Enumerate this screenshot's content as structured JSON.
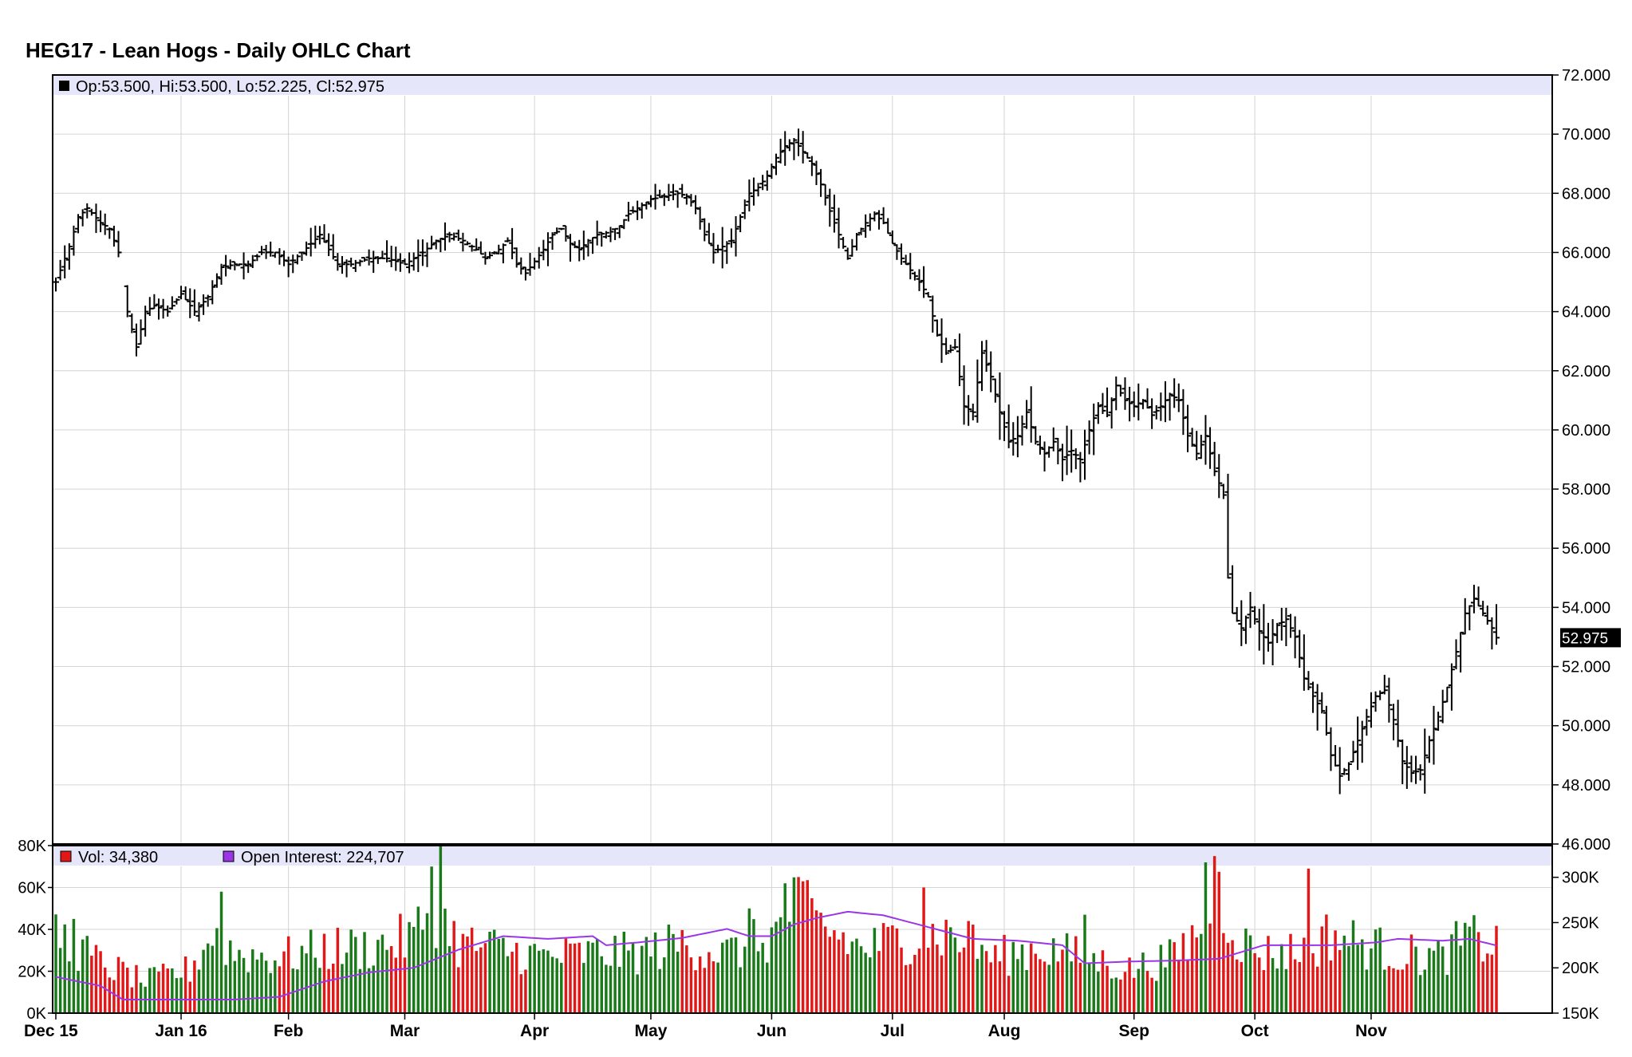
{
  "chart_data": {
    "type": "ohlc",
    "title": "HEG17 - Lean Hogs - Daily OHLC Chart",
    "price_legend": "Op:53.500, Hi:53.500, Lo:52.225, Cl:52.975",
    "last_price_label": "52.975",
    "last_price": 52.975,
    "price_axis": {
      "ylim": [
        46,
        72
      ],
      "ticks": [
        72,
        70,
        68,
        66,
        64,
        62,
        60,
        58,
        56,
        54,
        52,
        50,
        48,
        46
      ],
      "tick_labels": [
        "72.000",
        "70.000",
        "68.000",
        "66.000",
        "64.000",
        "62.000",
        "60.000",
        "58.000",
        "56.000",
        "54.000",
        "52.000",
        "50.000",
        "48.000",
        "46.000"
      ]
    },
    "volume_axis": {
      "ylim": [
        0,
        80000
      ],
      "ticks": [
        0,
        20000,
        40000,
        60000,
        80000
      ],
      "tick_labels": [
        "0K",
        "20K",
        "40K",
        "60K",
        "80K"
      ]
    },
    "open_interest_axis": {
      "ylim": [
        150000,
        335000
      ],
      "ticks": [
        150000,
        200000,
        250000,
        300000
      ],
      "tick_labels": [
        "150K",
        "200K",
        "250K",
        "300K"
      ]
    },
    "x_axis": {
      "months": [
        "Dec 15",
        "Jan 16",
        "Feb",
        "Mar",
        "Apr",
        "May",
        "Jun",
        "Jul",
        "Aug",
        "Sep",
        "Oct",
        "Nov"
      ],
      "month_start_day_index": [
        0,
        28,
        52,
        78,
        107,
        133,
        160,
        187,
        212,
        241,
        268,
        294
      ]
    },
    "volume_legend": "Vol: 34,380",
    "open_interest_legend": "Open Interest: 224,707",
    "price_anchors": [
      {
        "i": 0,
        "p": 65.0
      },
      {
        "i": 3,
        "p": 66.2
      },
      {
        "i": 5,
        "p": 67.2
      },
      {
        "i": 7,
        "p": 67.5
      },
      {
        "i": 10,
        "p": 67.0
      },
      {
        "i": 12,
        "p": 66.8
      },
      {
        "i": 14,
        "p": 66.0
      },
      {
        "i": 16,
        "p": 64.0
      },
      {
        "i": 18,
        "p": 62.8
      },
      {
        "i": 20,
        "p": 64.0
      },
      {
        "i": 22,
        "p": 64.2
      },
      {
        "i": 25,
        "p": 64.0
      },
      {
        "i": 28,
        "p": 64.6
      },
      {
        "i": 31,
        "p": 64.0
      },
      {
        "i": 34,
        "p": 64.5
      },
      {
        "i": 37,
        "p": 65.5
      },
      {
        "i": 40,
        "p": 65.6
      },
      {
        "i": 43,
        "p": 65.6
      },
      {
        "i": 46,
        "p": 66.0
      },
      {
        "i": 49,
        "p": 66.0
      },
      {
        "i": 52,
        "p": 65.6
      },
      {
        "i": 55,
        "p": 66.0
      },
      {
        "i": 57,
        "p": 66.3
      },
      {
        "i": 59,
        "p": 66.6
      },
      {
        "i": 61,
        "p": 66.1
      },
      {
        "i": 63,
        "p": 65.6
      },
      {
        "i": 66,
        "p": 65.6
      },
      {
        "i": 70,
        "p": 65.8
      },
      {
        "i": 74,
        "p": 65.8
      },
      {
        "i": 78,
        "p": 65.6
      },
      {
        "i": 80,
        "p": 65.8
      },
      {
        "i": 82,
        "p": 66.0
      },
      {
        "i": 85,
        "p": 66.4
      },
      {
        "i": 88,
        "p": 66.6
      },
      {
        "i": 91,
        "p": 66.4
      },
      {
        "i": 94,
        "p": 66.1
      },
      {
        "i": 96,
        "p": 65.8
      },
      {
        "i": 99,
        "p": 66.1
      },
      {
        "i": 101,
        "p": 66.4
      },
      {
        "i": 103,
        "p": 65.6
      },
      {
        "i": 105,
        "p": 65.3
      },
      {
        "i": 107,
        "p": 65.7
      },
      {
        "i": 109,
        "p": 66.1
      },
      {
        "i": 111,
        "p": 66.6
      },
      {
        "i": 113,
        "p": 66.8
      },
      {
        "i": 115,
        "p": 66.3
      },
      {
        "i": 117,
        "p": 66.1
      },
      {
        "i": 119,
        "p": 66.4
      },
      {
        "i": 121,
        "p": 66.6
      },
      {
        "i": 124,
        "p": 66.7
      },
      {
        "i": 126,
        "p": 66.9
      },
      {
        "i": 128,
        "p": 67.3
      },
      {
        "i": 131,
        "p": 67.6
      },
      {
        "i": 133,
        "p": 67.8
      },
      {
        "i": 136,
        "p": 67.9
      },
      {
        "i": 139,
        "p": 68.0
      },
      {
        "i": 141,
        "p": 67.9
      },
      {
        "i": 143,
        "p": 67.5
      },
      {
        "i": 145,
        "p": 66.6
      },
      {
        "i": 147,
        "p": 66.0
      },
      {
        "i": 149,
        "p": 66.2
      },
      {
        "i": 151,
        "p": 66.4
      },
      {
        "i": 153,
        "p": 67.2
      },
      {
        "i": 155,
        "p": 68.0
      },
      {
        "i": 157,
        "p": 68.2
      },
      {
        "i": 159,
        "p": 68.6
      },
      {
        "i": 161,
        "p": 69.2
      },
      {
        "i": 163,
        "p": 69.6
      },
      {
        "i": 165,
        "p": 69.8
      },
      {
        "i": 167,
        "p": 69.4
      },
      {
        "i": 169,
        "p": 69.0
      },
      {
        "i": 171,
        "p": 68.3
      },
      {
        "i": 173,
        "p": 67.4
      },
      {
        "i": 175,
        "p": 66.6
      },
      {
        "i": 177,
        "p": 65.8
      },
      {
        "i": 179,
        "p": 66.6
      },
      {
        "i": 181,
        "p": 67.0
      },
      {
        "i": 183,
        "p": 67.3
      },
      {
        "i": 185,
        "p": 67.0
      },
      {
        "i": 187,
        "p": 66.3
      },
      {
        "i": 189,
        "p": 65.8
      },
      {
        "i": 191,
        "p": 65.4
      },
      {
        "i": 193,
        "p": 65.0
      },
      {
        "i": 195,
        "p": 64.5
      },
      {
        "i": 197,
        "p": 63.2
      },
      {
        "i": 199,
        "p": 62.6
      },
      {
        "i": 201,
        "p": 62.8
      },
      {
        "i": 203,
        "p": 60.8
      },
      {
        "i": 205,
        "p": 60.6
      },
      {
        "i": 207,
        "p": 62.6
      },
      {
        "i": 209,
        "p": 61.8
      },
      {
        "i": 211,
        "p": 60.6
      },
      {
        "i": 213,
        "p": 59.6
      },
      {
        "i": 215,
        "p": 59.8
      },
      {
        "i": 217,
        "p": 60.6
      },
      {
        "i": 219,
        "p": 59.6
      },
      {
        "i": 221,
        "p": 59.2
      },
      {
        "i": 223,
        "p": 59.6
      },
      {
        "i": 225,
        "p": 59.0
      },
      {
        "i": 227,
        "p": 59.3
      },
      {
        "i": 229,
        "p": 59.0
      },
      {
        "i": 231,
        "p": 60.0
      },
      {
        "i": 233,
        "p": 60.8
      },
      {
        "i": 235,
        "p": 60.5
      },
      {
        "i": 237,
        "p": 61.5
      },
      {
        "i": 239,
        "p": 61.0
      },
      {
        "i": 241,
        "p": 60.8
      },
      {
        "i": 243,
        "p": 61.0
      },
      {
        "i": 245,
        "p": 60.5
      },
      {
        "i": 247,
        "p": 60.8
      },
      {
        "i": 249,
        "p": 61.2
      },
      {
        "i": 251,
        "p": 61.0
      },
      {
        "i": 253,
        "p": 59.8
      },
      {
        "i": 255,
        "p": 59.2
      },
      {
        "i": 257,
        "p": 59.8
      },
      {
        "i": 259,
        "p": 58.6
      },
      {
        "i": 261,
        "p": 57.8
      },
      {
        "i": 262,
        "p": 55.0
      },
      {
        "i": 263,
        "p": 53.8
      },
      {
        "i": 265,
        "p": 53.3
      },
      {
        "i": 267,
        "p": 54.0
      },
      {
        "i": 269,
        "p": 53.2
      },
      {
        "i": 271,
        "p": 52.8
      },
      {
        "i": 273,
        "p": 53.4
      },
      {
        "i": 275,
        "p": 53.6
      },
      {
        "i": 277,
        "p": 53.0
      },
      {
        "i": 279,
        "p": 51.6
      },
      {
        "i": 281,
        "p": 51.0
      },
      {
        "i": 283,
        "p": 50.5
      },
      {
        "i": 285,
        "p": 49.0
      },
      {
        "i": 287,
        "p": 48.3
      },
      {
        "i": 289,
        "p": 48.7
      },
      {
        "i": 291,
        "p": 49.5
      },
      {
        "i": 293,
        "p": 50.3
      },
      {
        "i": 295,
        "p": 51.0
      },
      {
        "i": 297,
        "p": 51.2
      },
      {
        "i": 299,
        "p": 50.2
      },
      {
        "i": 301,
        "p": 48.8
      },
      {
        "i": 303,
        "p": 48.4
      },
      {
        "i": 305,
        "p": 48.5
      },
      {
        "i": 307,
        "p": 49.5
      },
      {
        "i": 309,
        "p": 50.3
      },
      {
        "i": 311,
        "p": 51.3
      },
      {
        "i": 313,
        "p": 52.5
      },
      {
        "i": 315,
        "p": 53.8
      },
      {
        "i": 317,
        "p": 54.3
      },
      {
        "i": 319,
        "p": 53.8
      },
      {
        "i": 321,
        "p": 53.3
      },
      {
        "i": 322,
        "p": 52.975
      }
    ],
    "volume_anchors": [
      {
        "i": 0,
        "v": 40000
      },
      {
        "i": 10,
        "v": 25000
      },
      {
        "i": 20,
        "v": 16000
      },
      {
        "i": 30,
        "v": 22000
      },
      {
        "i": 35,
        "v": 40000
      },
      {
        "i": 40,
        "v": 30000
      },
      {
        "i": 50,
        "v": 28000
      },
      {
        "i": 60,
        "v": 32000
      },
      {
        "i": 70,
        "v": 33000
      },
      {
        "i": 80,
        "v": 38000
      },
      {
        "i": 84,
        "v": 55000
      },
      {
        "i": 90,
        "v": 35000
      },
      {
        "i": 100,
        "v": 32000
      },
      {
        "i": 110,
        "v": 28000
      },
      {
        "i": 120,
        "v": 30000
      },
      {
        "i": 130,
        "v": 30000
      },
      {
        "i": 140,
        "v": 35000
      },
      {
        "i": 150,
        "v": 30000
      },
      {
        "i": 160,
        "v": 38000
      },
      {
        "i": 165,
        "v": 55000
      },
      {
        "i": 170,
        "v": 45000
      },
      {
        "i": 180,
        "v": 32000
      },
      {
        "i": 190,
        "v": 38000
      },
      {
        "i": 200,
        "v": 40000
      },
      {
        "i": 210,
        "v": 28000
      },
      {
        "i": 220,
        "v": 33000
      },
      {
        "i": 230,
        "v": 28000
      },
      {
        "i": 240,
        "v": 22000
      },
      {
        "i": 250,
        "v": 28000
      },
      {
        "i": 255,
        "v": 40000
      },
      {
        "i": 260,
        "v": 60000
      },
      {
        "i": 265,
        "v": 35000
      },
      {
        "i": 270,
        "v": 30000
      },
      {
        "i": 280,
        "v": 32000
      },
      {
        "i": 285,
        "v": 40000
      },
      {
        "i": 290,
        "v": 36000
      },
      {
        "i": 300,
        "v": 30000
      },
      {
        "i": 310,
        "v": 28000
      },
      {
        "i": 315,
        "v": 38000
      },
      {
        "i": 322,
        "v": 34380
      }
    ],
    "volume_spikes": [
      {
        "i": 4,
        "v": 45000
      },
      {
        "i": 37,
        "v": 58000
      },
      {
        "i": 84,
        "v": 70000
      },
      {
        "i": 86,
        "v": 80000
      },
      {
        "i": 155,
        "v": 50000
      },
      {
        "i": 163,
        "v": 62000
      },
      {
        "i": 166,
        "v": 65000
      },
      {
        "i": 194,
        "v": 60000
      },
      {
        "i": 204,
        "v": 44000
      },
      {
        "i": 230,
        "v": 47000
      },
      {
        "i": 257,
        "v": 72000
      },
      {
        "i": 259,
        "v": 75000
      },
      {
        "i": 280,
        "v": 69000
      }
    ],
    "open_interest_anchors": [
      {
        "i": 0,
        "v": 190000
      },
      {
        "i": 10,
        "v": 180000
      },
      {
        "i": 15,
        "v": 165000
      },
      {
        "i": 25,
        "v": 165000
      },
      {
        "i": 40,
        "v": 165000
      },
      {
        "i": 50,
        "v": 168000
      },
      {
        "i": 60,
        "v": 185000
      },
      {
        "i": 70,
        "v": 195000
      },
      {
        "i": 80,
        "v": 200000
      },
      {
        "i": 90,
        "v": 220000
      },
      {
        "i": 100,
        "v": 235000
      },
      {
        "i": 110,
        "v": 232000
      },
      {
        "i": 120,
        "v": 235000
      },
      {
        "i": 123,
        "v": 225000
      },
      {
        "i": 130,
        "v": 228000
      },
      {
        "i": 140,
        "v": 233000
      },
      {
        "i": 150,
        "v": 243000
      },
      {
        "i": 155,
        "v": 235000
      },
      {
        "i": 160,
        "v": 235000
      },
      {
        "i": 165,
        "v": 248000
      },
      {
        "i": 170,
        "v": 255000
      },
      {
        "i": 177,
        "v": 262000
      },
      {
        "i": 185,
        "v": 258000
      },
      {
        "i": 195,
        "v": 245000
      },
      {
        "i": 205,
        "v": 232000
      },
      {
        "i": 215,
        "v": 230000
      },
      {
        "i": 225,
        "v": 225000
      },
      {
        "i": 230,
        "v": 205000
      },
      {
        "i": 240,
        "v": 207000
      },
      {
        "i": 250,
        "v": 208000
      },
      {
        "i": 260,
        "v": 210000
      },
      {
        "i": 270,
        "v": 225000
      },
      {
        "i": 280,
        "v": 225000
      },
      {
        "i": 285,
        "v": 225000
      },
      {
        "i": 295,
        "v": 228000
      },
      {
        "i": 300,
        "v": 232000
      },
      {
        "i": 310,
        "v": 230000
      },
      {
        "i": 316,
        "v": 232000
      },
      {
        "i": 322,
        "v": 224707
      }
    ],
    "colors": {
      "up_volume": "#1a7a1a",
      "down_volume": "#e01818",
      "open_interest": "#9a36e6",
      "ohlc": "#000000",
      "legend_band": "#e6e6fa",
      "grid": "#d4d4d4",
      "price_tag_bg": "#000000"
    }
  }
}
